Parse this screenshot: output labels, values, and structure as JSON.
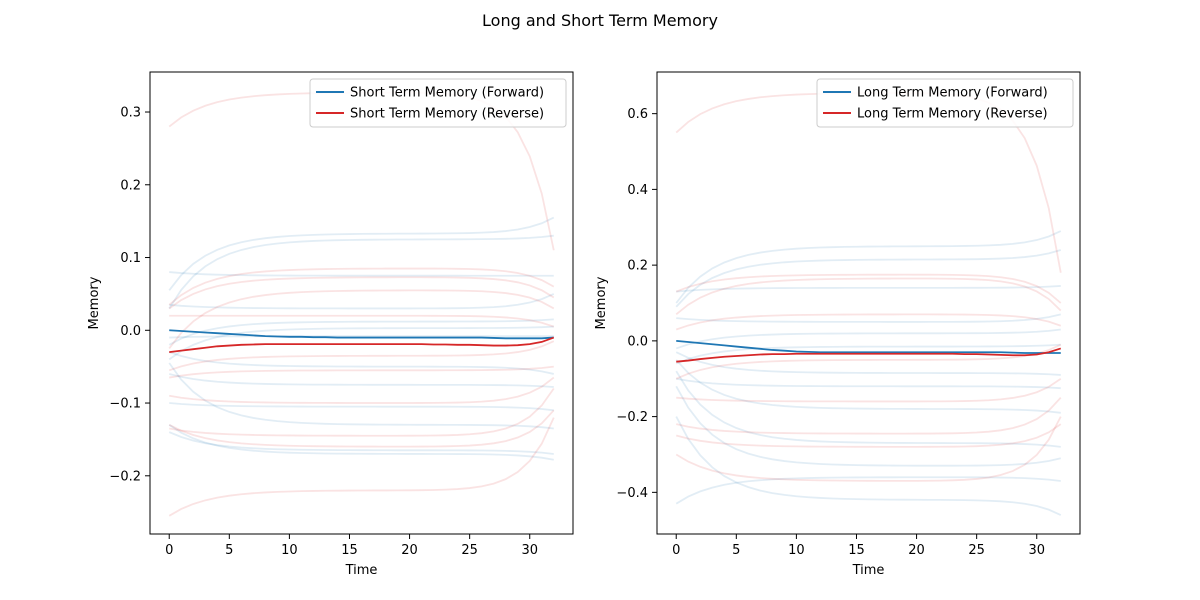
{
  "figure": {
    "title": "Long and Short Term Memory"
  },
  "colors": {
    "forward": "#1f77b4",
    "reverse": "#d62728"
  },
  "chart_data": [
    {
      "type": "line",
      "title": "",
      "xlabel": "Time",
      "ylabel": "Memory",
      "xlim": [
        -1.6,
        33.6
      ],
      "ylim": [
        -0.28,
        0.355
      ],
      "xticks": [
        0,
        5,
        10,
        15,
        20,
        25,
        30
      ],
      "xtick_labels": [
        "0",
        "5",
        "10",
        "15",
        "20",
        "25",
        "30"
      ],
      "yticks": [
        -0.2,
        -0.1,
        0.0,
        0.1,
        0.2,
        0.3
      ],
      "ytick_labels": [
        "−0.2",
        "−0.1",
        "0.0",
        "0.1",
        "0.2",
        "0.3"
      ],
      "legend_placement": "upper right",
      "x": [
        0,
        1,
        2,
        3,
        4,
        5,
        6,
        7,
        8,
        9,
        10,
        11,
        12,
        13,
        14,
        15,
        16,
        17,
        18,
        19,
        20,
        21,
        22,
        23,
        24,
        25,
        26,
        27,
        28,
        29,
        30,
        31,
        32
      ],
      "series": [
        {
          "name": "Short Term Memory (Forward)",
          "color": "forward",
          "values": [
            0.0,
            -0.001,
            -0.002,
            -0.003,
            -0.004,
            -0.005,
            -0.006,
            -0.007,
            -0.008,
            -0.0085,
            -0.009,
            -0.009,
            -0.0095,
            -0.0095,
            -0.01,
            -0.01,
            -0.01,
            -0.01,
            -0.01,
            -0.01,
            -0.01,
            -0.01,
            -0.01,
            -0.01,
            -0.01,
            -0.01,
            -0.01,
            -0.0105,
            -0.011,
            -0.011,
            -0.011,
            -0.011,
            -0.01
          ]
        },
        {
          "name": "Short Term Memory (Reverse)",
          "color": "reverse",
          "values": [
            -0.03,
            -0.028,
            -0.026,
            -0.024,
            -0.022,
            -0.021,
            -0.02,
            -0.0195,
            -0.019,
            -0.019,
            -0.019,
            -0.019,
            -0.019,
            -0.019,
            -0.019,
            -0.019,
            -0.019,
            -0.019,
            -0.019,
            -0.019,
            -0.019,
            -0.019,
            -0.0195,
            -0.0195,
            -0.02,
            -0.02,
            -0.0205,
            -0.021,
            -0.021,
            -0.0205,
            -0.019,
            -0.016,
            -0.01
          ]
        }
      ],
      "background": {
        "forward": [
          {
            "start": 0.055,
            "end": 0.133,
            "final": 0.155
          },
          {
            "start": 0.03,
            "end": 0.125,
            "final": 0.13
          },
          {
            "start": 0.08,
            "end": 0.075,
            "final": 0.075
          },
          {
            "start": 0.035,
            "end": 0.03,
            "final": 0.05
          },
          {
            "start": -0.02,
            "end": 0.012,
            "final": 0.015
          },
          {
            "start": -0.04,
            "end": 0.003,
            "final": 0.005
          },
          {
            "start": -0.01,
            "end": -0.008,
            "final": -0.008
          },
          {
            "start": -0.03,
            "end": -0.05,
            "final": -0.06
          },
          {
            "start": -0.06,
            "end": -0.075,
            "final": -0.078
          },
          {
            "start": -0.1,
            "end": -0.105,
            "final": -0.11
          },
          {
            "start": -0.045,
            "end": -0.13,
            "final": -0.135
          },
          {
            "start": -0.14,
            "end": -0.165,
            "final": -0.17
          },
          {
            "start": -0.13,
            "end": -0.17,
            "final": -0.178
          }
        ],
        "reverse": [
          {
            "start": 0.28,
            "end": 0.327,
            "final": 0.11
          },
          {
            "start": 0.035,
            "end": 0.085,
            "final": 0.06
          },
          {
            "start": 0.03,
            "end": 0.073,
            "final": 0.045
          },
          {
            "start": -0.025,
            "end": 0.055,
            "final": 0.03
          },
          {
            "start": 0.02,
            "end": 0.02,
            "final": 0.005
          },
          {
            "start": -0.055,
            "end": -0.035,
            "final": -0.015
          },
          {
            "start": -0.065,
            "end": -0.055,
            "final": -0.05
          },
          {
            "start": -0.09,
            "end": -0.1,
            "final": -0.065
          },
          {
            "start": -0.135,
            "end": -0.145,
            "final": -0.08
          },
          {
            "start": -0.13,
            "end": -0.16,
            "final": -0.11
          },
          {
            "start": -0.255,
            "end": -0.22,
            "final": -0.12
          }
        ]
      }
    },
    {
      "type": "line",
      "title": "",
      "xlabel": "Time",
      "ylabel": "Memory",
      "xlim": [
        -1.6,
        33.6
      ],
      "ylim": [
        -0.51,
        0.71
      ],
      "xticks": [
        0,
        5,
        10,
        15,
        20,
        25,
        30
      ],
      "xtick_labels": [
        "0",
        "5",
        "10",
        "15",
        "20",
        "25",
        "30"
      ],
      "yticks": [
        -0.4,
        -0.2,
        0.0,
        0.2,
        0.4,
        0.6
      ],
      "ytick_labels": [
        "−0.4",
        "−0.2",
        "0.0",
        "0.2",
        "0.4",
        "0.6"
      ],
      "legend_placement": "upper right",
      "x": [
        0,
        1,
        2,
        3,
        4,
        5,
        6,
        7,
        8,
        9,
        10,
        11,
        12,
        13,
        14,
        15,
        16,
        17,
        18,
        19,
        20,
        21,
        22,
        23,
        24,
        25,
        26,
        27,
        28,
        29,
        30,
        31,
        32
      ],
      "series": [
        {
          "name": "Long Term Memory (Forward)",
          "color": "forward",
          "values": [
            0.0,
            -0.003,
            -0.006,
            -0.009,
            -0.012,
            -0.015,
            -0.018,
            -0.021,
            -0.024,
            -0.026,
            -0.028,
            -0.029,
            -0.03,
            -0.03,
            -0.03,
            -0.03,
            -0.03,
            -0.03,
            -0.03,
            -0.03,
            -0.03,
            -0.03,
            -0.03,
            -0.03,
            -0.03,
            -0.03,
            -0.03,
            -0.03,
            -0.031,
            -0.032,
            -0.032,
            -0.032,
            -0.032
          ]
        },
        {
          "name": "Long Term Memory (Reverse)",
          "color": "reverse",
          "values": [
            -0.055,
            -0.052,
            -0.048,
            -0.045,
            -0.042,
            -0.04,
            -0.038,
            -0.036,
            -0.035,
            -0.035,
            -0.034,
            -0.034,
            -0.034,
            -0.034,
            -0.034,
            -0.034,
            -0.034,
            -0.034,
            -0.034,
            -0.034,
            -0.034,
            -0.034,
            -0.034,
            -0.034,
            -0.035,
            -0.035,
            -0.036,
            -0.037,
            -0.038,
            -0.038,
            -0.036,
            -0.03,
            -0.02
          ]
        }
      ],
      "background": {
        "forward": [
          {
            "start": 0.1,
            "end": 0.25,
            "final": 0.29
          },
          {
            "start": 0.09,
            "end": 0.215,
            "final": 0.24
          },
          {
            "start": 0.13,
            "end": 0.14,
            "final": 0.145
          },
          {
            "start": 0.06,
            "end": 0.05,
            "final": 0.07
          },
          {
            "start": -0.02,
            "end": 0.02,
            "final": 0.03
          },
          {
            "start": -0.06,
            "end": -0.015,
            "final": -0.01
          },
          {
            "start": -0.03,
            "end": -0.085,
            "final": -0.09
          },
          {
            "start": -0.1,
            "end": -0.12,
            "final": -0.125
          },
          {
            "start": -0.05,
            "end": -0.18,
            "final": -0.19
          },
          {
            "start": -0.08,
            "end": -0.27,
            "final": -0.28
          },
          {
            "start": -0.12,
            "end": -0.33,
            "final": -0.31
          },
          {
            "start": -0.43,
            "end": -0.36,
            "final": -0.37
          },
          {
            "start": -0.2,
            "end": -0.42,
            "final": -0.46
          }
        ],
        "reverse": [
          {
            "start": 0.55,
            "end": 0.655,
            "final": 0.18
          },
          {
            "start": 0.13,
            "end": 0.175,
            "final": 0.1
          },
          {
            "start": 0.07,
            "end": 0.165,
            "final": 0.08
          },
          {
            "start": 0.03,
            "end": 0.07,
            "final": 0.04
          },
          {
            "start": -0.1,
            "end": -0.05,
            "final": -0.01
          },
          {
            "start": -0.15,
            "end": -0.16,
            "final": -0.1
          },
          {
            "start": -0.22,
            "end": -0.245,
            "final": -0.15
          },
          {
            "start": -0.25,
            "end": -0.28,
            "final": -0.22
          },
          {
            "start": -0.3,
            "end": -0.37,
            "final": -0.2
          }
        ]
      }
    }
  ]
}
